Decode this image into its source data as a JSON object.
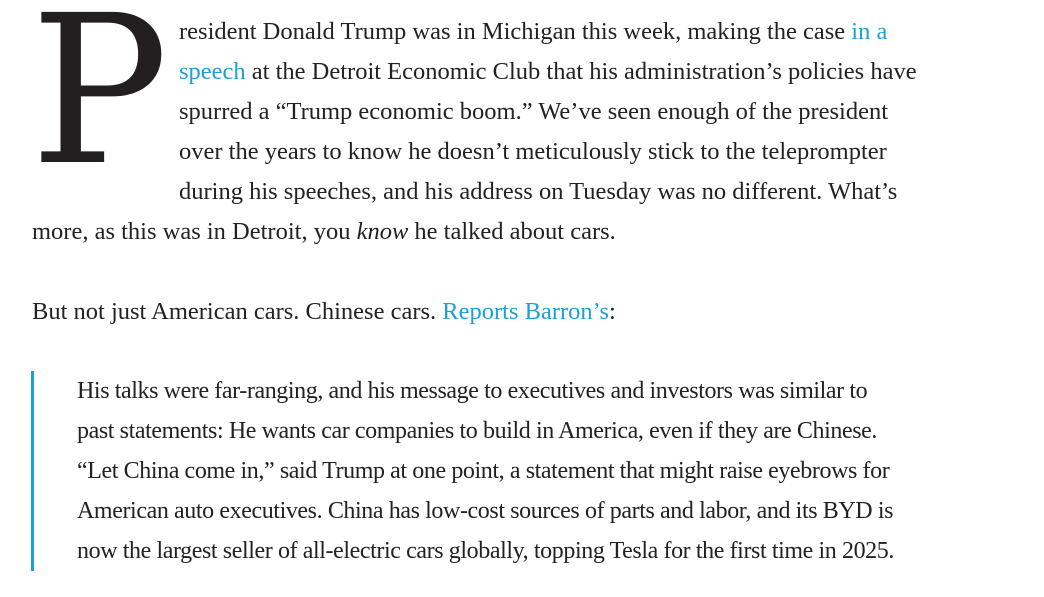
{
  "article": {
    "drop_cap": "P",
    "paragraphs": [
      {
        "lines": [
          [
            {
              "t": "resident Donald Trump was in Michigan this week, making the case "
            },
            {
              "t": "in a",
              "link": true
            }
          ],
          [
            {
              "t": "speech",
              "link": true
            },
            {
              "t": " at the Detroit Economic Club that his administration’s policies have"
            }
          ],
          [
            {
              "t": "spurred a “Trump economic boom.” We’ve seen enough of the president"
            }
          ],
          [
            {
              "t": "over the years to know he doesn’t meticulously stick to the teleprompter"
            }
          ],
          [
            {
              "t": "during his speeches, and his address on Tuesday was no different. What’s"
            }
          ],
          [
            {
              "t": "more, as this was in Detroit, you "
            },
            {
              "t": "know",
              "em": true
            },
            {
              "t": " he talked about cars."
            }
          ]
        ]
      },
      {
        "lines": [
          [
            {
              "t": "But not just American cars. Chinese cars. "
            },
            {
              "t": "Reports Barron’s",
              "link": true
            },
            {
              "t": ":"
            }
          ]
        ]
      }
    ],
    "blockquote": {
      "lines": [
        [
          {
            "t": "His talks were far-ranging, and his message to executives and investors was similar to"
          }
        ],
        [
          {
            "t": "past statements: He wants car companies to build in America, even if they are Chinese."
          }
        ],
        [
          {
            "t": "“Let China come in,” said Trump at one point, a statement that might raise eyebrows for"
          }
        ],
        [
          {
            "t": "American auto executives. China has low-cost sources of parts and labor, and its BYD is"
          }
        ],
        [
          {
            "t": "now the largest seller of all-electric cars globally, topping Tesla for the first time in 2025."
          }
        ]
      ]
    },
    "colors": {
      "link": "#1ba1d8",
      "text": "#222222",
      "quote_bar": "#1ba1d8"
    }
  }
}
